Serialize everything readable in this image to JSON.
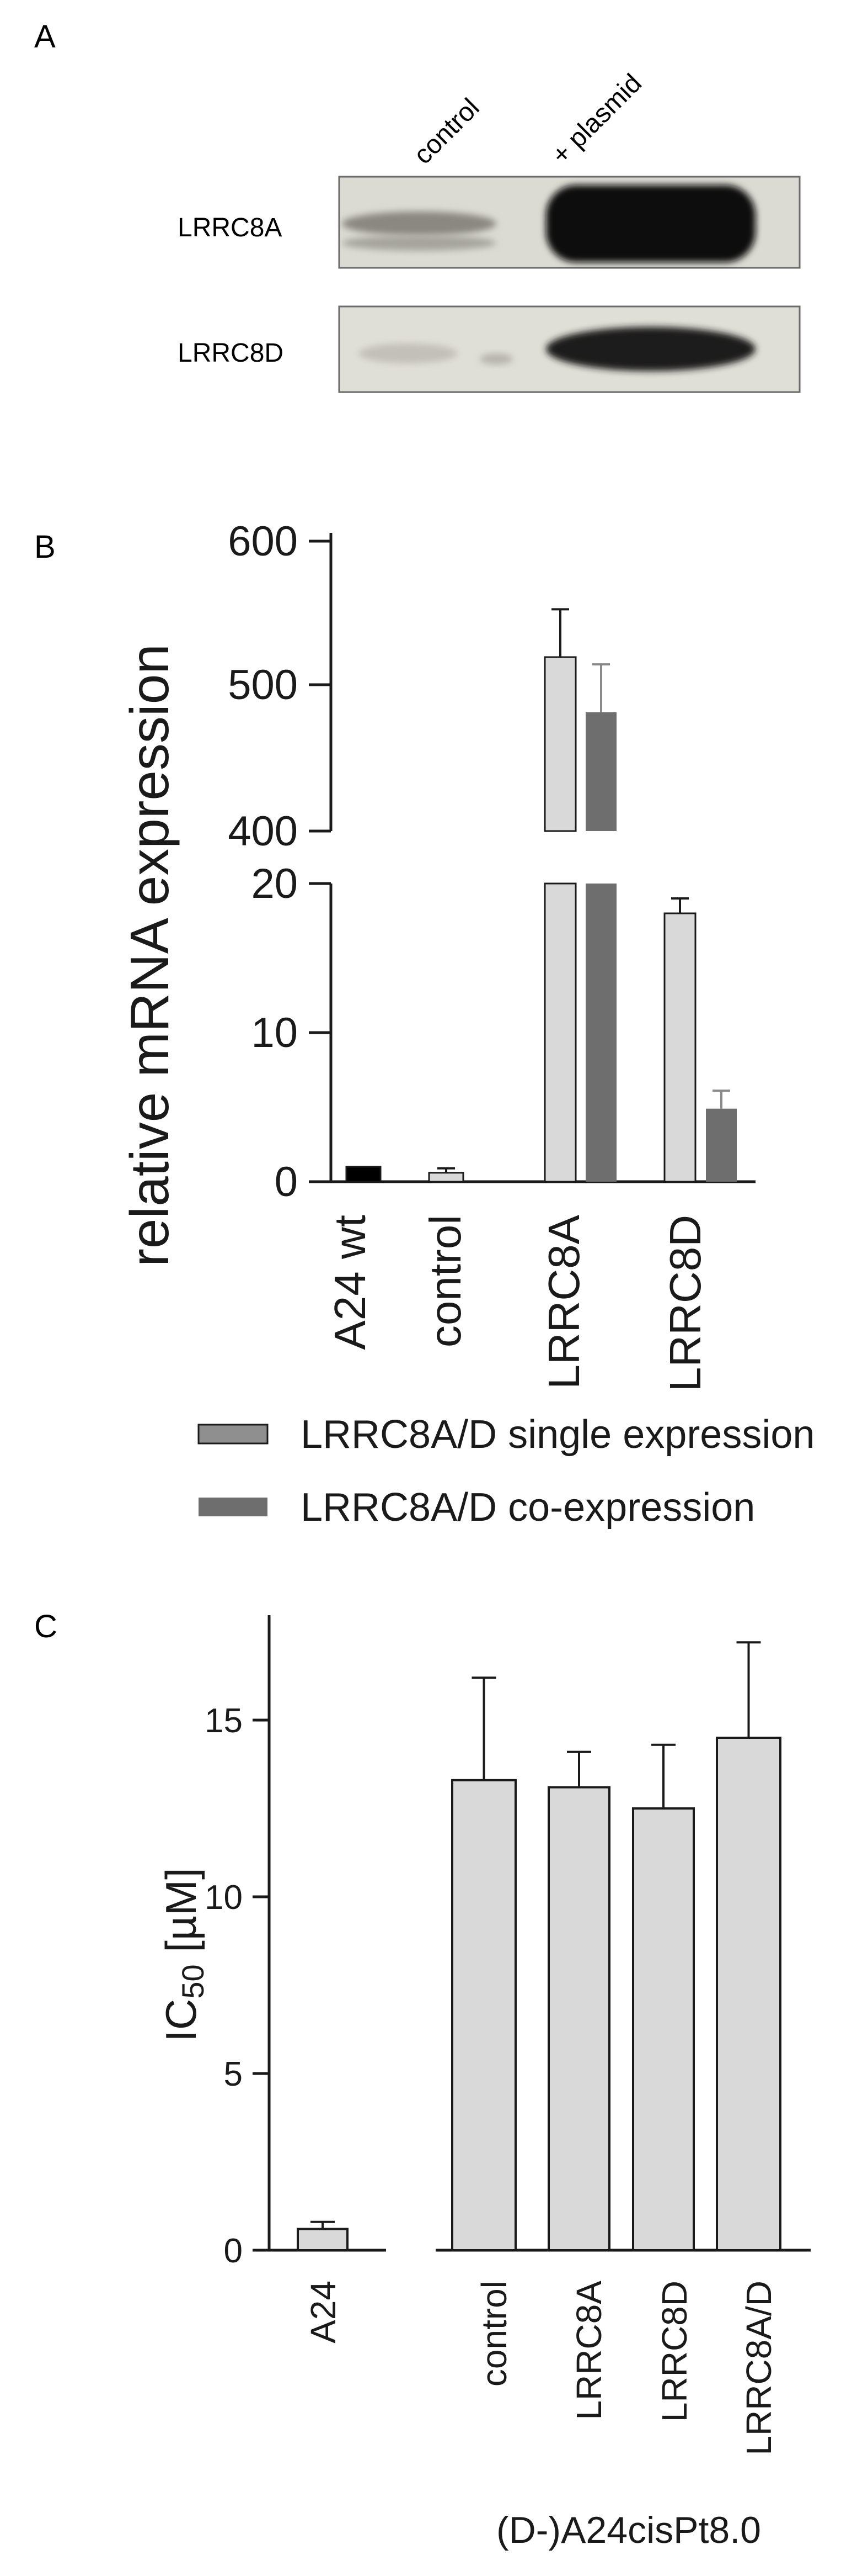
{
  "panel_a": {
    "letter": "A",
    "lanes": [
      "control",
      "+ plasmid"
    ],
    "rows": [
      "LRRC8A",
      "LRRC8D"
    ]
  },
  "chart_data": [
    {
      "panel": "B",
      "type": "bar",
      "ylabel": "relative mRNA expression",
      "axis_break": {
        "lower": [
          0,
          20
        ],
        "upper": [
          400,
          600
        ]
      },
      "ticks_lower": [
        "0",
        "10",
        "20"
      ],
      "ticks_upper": [
        "400",
        "500",
        "600"
      ],
      "categories": [
        "A24 wt",
        "control",
        "LRRC8A",
        "LRRC8D"
      ],
      "series": [
        {
          "name": "LRRC8A/D single expression",
          "color": "#d9d9d9",
          "values": [
            1.0,
            0.6,
            520,
            18
          ],
          "errors": [
            0,
            0.3,
            33,
            1.0
          ]
        },
        {
          "name": "LRRC8A/D co-expression",
          "color": "#6e6e6e",
          "values": [
            null,
            null,
            482,
            4.9
          ],
          "errors": [
            null,
            null,
            33,
            1.2
          ]
        }
      ],
      "wt_color": "#000000",
      "legend_position": "below"
    },
    {
      "panel": "C",
      "type": "bar",
      "ylabel_main": "IC",
      "ylabel_sub": "50",
      "ylabel_unit": " [µM]",
      "xlabel": "(D-)A24cisPt8.0",
      "ylim": [
        0,
        18
      ],
      "ticks": [
        "0",
        "5",
        "10",
        "15"
      ],
      "categories": [
        "A24",
        "control",
        "LRRC8A",
        "LRRC8D",
        "LRRC8A/D"
      ],
      "values": [
        0.6,
        13.3,
        13.1,
        12.5,
        14.5
      ],
      "errors": [
        0.2,
        2.9,
        1.0,
        1.8,
        2.7
      ],
      "color": "#d9d9d9"
    }
  ]
}
